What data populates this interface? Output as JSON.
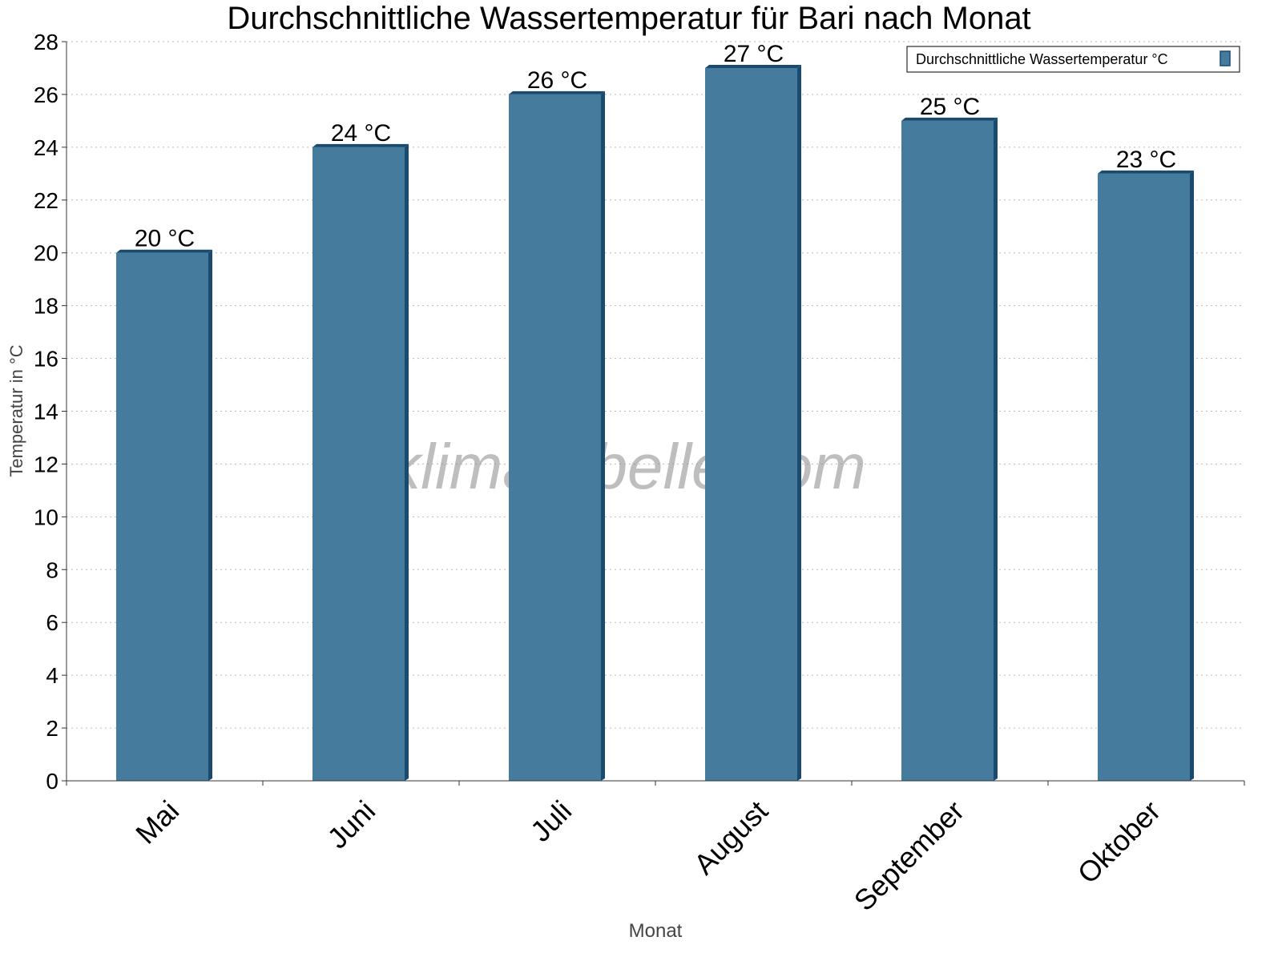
{
  "chart_data": {
    "type": "bar",
    "title": "Durchschnittliche Wassertemperatur für Bari nach Monat",
    "xlabel": "Monat",
    "ylabel": "Temperatur in °C",
    "categories": [
      "Mai",
      "Juni",
      "Juli",
      "August",
      "September",
      "Oktober"
    ],
    "series": [
      {
        "name": "Durchschnittliche Wassertemperatur °C",
        "values": [
          20,
          24,
          26,
          27,
          25,
          23
        ],
        "color": "#457b9d",
        "edge_color": "#1a4a6e"
      }
    ],
    "data_labels": [
      "20 °C",
      "24 °C",
      "26 °C",
      "27 °C",
      "25 °C",
      "23 °C"
    ],
    "ylim": [
      0,
      28
    ],
    "yticks": [
      0,
      2,
      4,
      6,
      8,
      10,
      12,
      14,
      16,
      18,
      20,
      22,
      24,
      26,
      28
    ],
    "grid": true,
    "legend": "top-right",
    "watermark": "klimatabelle.com"
  }
}
